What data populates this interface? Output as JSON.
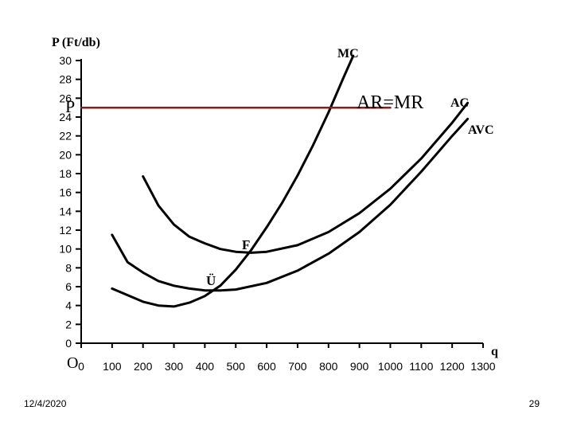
{
  "chart_data": {
    "type": "line",
    "ylabel": "P (Ft/db)",
    "xlabel": "q",
    "origin_label": "O",
    "x_ticks": [
      0,
      100,
      200,
      300,
      400,
      500,
      600,
      700,
      800,
      900,
      1000,
      1100,
      1200,
      1300
    ],
    "y_ticks": [
      0,
      2,
      4,
      6,
      8,
      10,
      12,
      14,
      16,
      18,
      20,
      22,
      24,
      26,
      28,
      30
    ],
    "xlim": [
      0,
      1300
    ],
    "ylim": [
      0,
      30
    ],
    "price_label": "P",
    "price_level": 25,
    "series": [
      {
        "name": "MC",
        "color": "#000000",
        "x": [
          100,
          200,
          250,
          300,
          350,
          400,
          450,
          500,
          550,
          600,
          650,
          700,
          750,
          800,
          850,
          880
        ],
        "y": [
          5.8,
          4.4,
          4.0,
          3.9,
          4.3,
          5.0,
          6.1,
          7.8,
          9.9,
          12.3,
          14.9,
          17.8,
          21.0,
          24.5,
          28.3,
          30.5
        ]
      },
      {
        "name": "AR=MR",
        "color": "#7b2323",
        "x": [
          0,
          1000
        ],
        "y": [
          25,
          25
        ]
      },
      {
        "name": "AC",
        "color": "#000000",
        "x": [
          200,
          250,
          300,
          350,
          400,
          450,
          500,
          550,
          600,
          700,
          800,
          900,
          1000,
          1100,
          1200,
          1250
        ],
        "y": [
          17.7,
          14.6,
          12.6,
          11.3,
          10.6,
          10.0,
          9.7,
          9.6,
          9.7,
          10.4,
          11.8,
          13.8,
          16.4,
          19.6,
          23.4,
          25.5
        ]
      },
      {
        "name": "AVC",
        "color": "#000000",
        "x": [
          100,
          150,
          200,
          250,
          300,
          350,
          400,
          450,
          500,
          600,
          700,
          800,
          900,
          1000,
          1100,
          1200,
          1250
        ],
        "y": [
          11.5,
          8.6,
          7.5,
          6.6,
          6.1,
          5.8,
          5.6,
          5.6,
          5.7,
          6.4,
          7.7,
          9.5,
          11.8,
          14.7,
          18.2,
          22.0,
          23.8
        ]
      }
    ],
    "points": [
      {
        "label": "F",
        "x": 555,
        "y": 9.7
      },
      {
        "label": "Ü",
        "x": 415,
        "y": 5.6
      }
    ],
    "grid": false
  },
  "footer": {
    "date": "12/4/2020",
    "page": "29"
  }
}
